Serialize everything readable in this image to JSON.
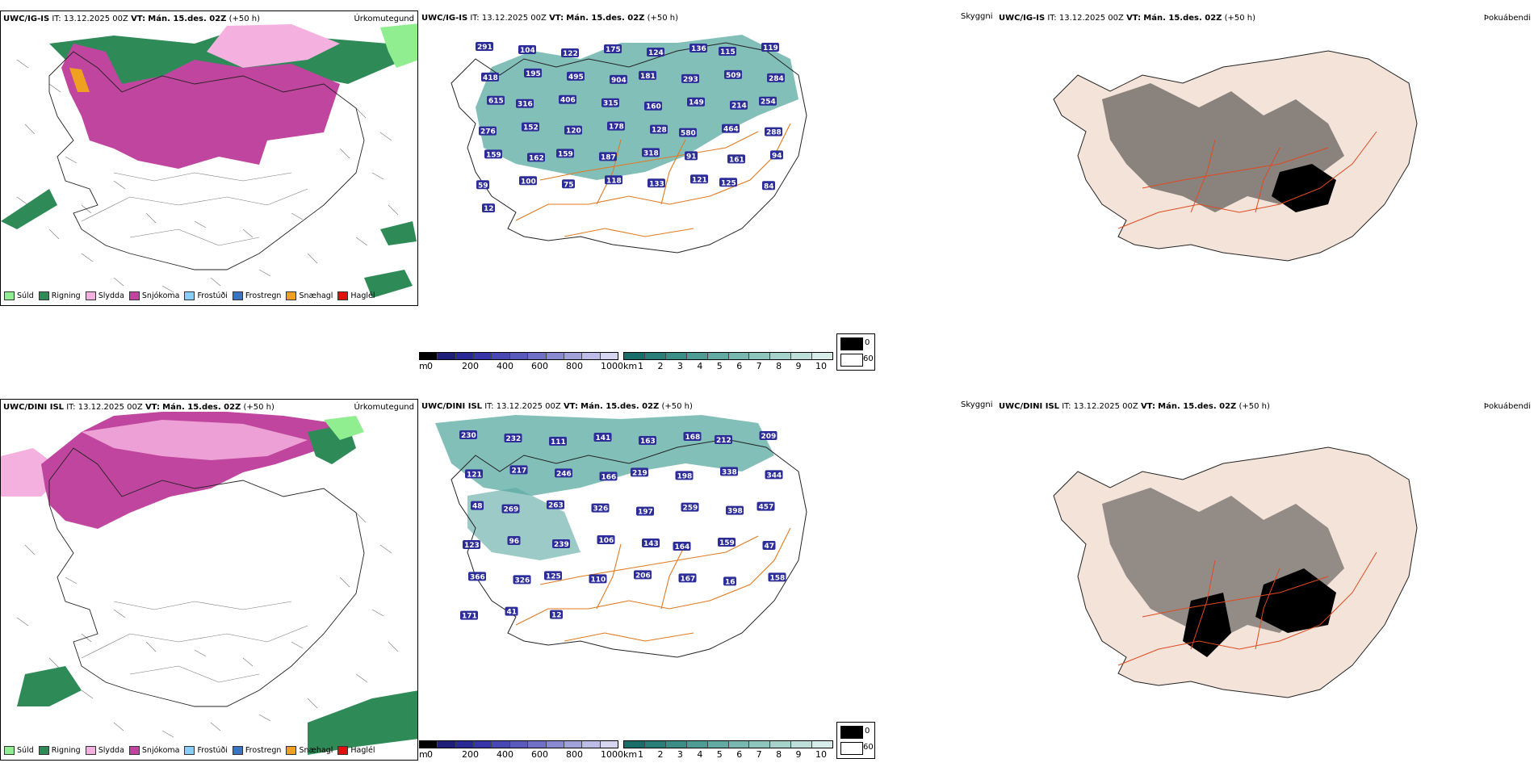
{
  "rows": [
    {
      "precip": {
        "model": "UWC/IG-IS",
        "it_label": "IT:",
        "it_value": "13.12.2025 00Z",
        "vt_label": "VT:",
        "vt_value": "Mán. 15.des. 02Z",
        "lead": "(+50 h)",
        "right_title": "Úrkomutegund"
      },
      "cloud": {
        "model": "UWC/IG-IS",
        "it_label": "IT:",
        "it_value": "13.12.2025 00Z",
        "vt_label": "VT:",
        "vt_value": "Mán. 15.des. 02Z",
        "lead": "(+50 h)",
        "labels": [
          "291",
          "104",
          "122",
          "175",
          "124",
          "136",
          "115",
          "119",
          "418",
          "195",
          "495",
          "904",
          "181",
          "293",
          "509",
          "284",
          "615",
          "316",
          "406",
          "315",
          "160",
          "149",
          "214",
          "254",
          "276",
          "152",
          "120",
          "178",
          "128",
          "580",
          "464",
          "288",
          "159",
          "162",
          "159",
          "187",
          "318",
          "91",
          "161",
          "94",
          "59",
          "100",
          "75",
          "118",
          "133",
          "121",
          "125",
          "84",
          "12"
        ]
      },
      "fog": {
        "model": "UWC/IG-IS",
        "it_label": "IT:",
        "it_value": "13.12.2025 00Z",
        "vt_label": "VT:",
        "vt_value": "Mán. 15.des. 02Z",
        "lead": "(+50 h)",
        "right_title": "Þokuábendi",
        "top_left": "Skyggni"
      }
    },
    {
      "precip": {
        "model": "UWC/DINI ISL",
        "it_label": "IT:",
        "it_value": "13.12.2025 00Z",
        "vt_label": "VT:",
        "vt_value": "Mán. 15.des. 02Z",
        "lead": "(+50 h)",
        "right_title": "Úrkomutegund"
      },
      "cloud": {
        "model": "UWC/DINI ISL",
        "it_label": "IT:",
        "it_value": "13.12.2025 00Z",
        "vt_label": "VT:",
        "vt_value": "Mán. 15.des. 02Z",
        "lead": "(+50 h)",
        "labels": [
          "230",
          "232",
          "111",
          "141",
          "163",
          "168",
          "212",
          "209",
          "121",
          "217",
          "246",
          "166",
          "219",
          "198",
          "338",
          "344",
          "48",
          "269",
          "263",
          "326",
          "197",
          "259",
          "398",
          "457",
          "123",
          "96",
          "239",
          "106",
          "143",
          "164",
          "159",
          "47",
          "366",
          "326",
          "125",
          "110",
          "206",
          "167",
          "16",
          "158",
          "171",
          "41",
          "12"
        ]
      },
      "fog": {
        "model": "UWC/DINI ISL",
        "it_label": "IT:",
        "it_value": "13.12.2025 00Z",
        "vt_label": "VT:",
        "vt_value": "Mán. 15.des. 02Z",
        "lead": "(+50 h)",
        "right_title": "Þokuábendi",
        "top_left": "Skyggni"
      }
    }
  ],
  "precip_legend": [
    {
      "label": "Súld",
      "color": "#90ee90"
    },
    {
      "label": "Rigning",
      "color": "#2e8b57"
    },
    {
      "label": "Slydda",
      "color": "#f4b0de"
    },
    {
      "label": "Snjókoma",
      "color": "#c0459e"
    },
    {
      "label": "Frostúði",
      "color": "#87cefa"
    },
    {
      "label": "Frostregn",
      "color": "#3a75c4"
    },
    {
      "label": "Snæhagl",
      "color": "#f0a020"
    },
    {
      "label": "Haglél",
      "color": "#e01010"
    }
  ],
  "cloud_base_bar": {
    "unit": "m",
    "ticks": [
      "0",
      "200",
      "400",
      "600",
      "800",
      "1000"
    ],
    "colors": [
      "#000000",
      "#1f1f7a",
      "#2a2a96",
      "#3636a8",
      "#4848b4",
      "#5a5abc",
      "#7070c6",
      "#8a8ad0",
      "#a2a2da",
      "#bcbce6",
      "#d6d6f0"
    ]
  },
  "visibility_bar": {
    "unit": "km",
    "ticks": [
      "1",
      "2",
      "3",
      "4",
      "5",
      "6",
      "7",
      "8",
      "9",
      "10"
    ],
    "colors": [
      "#1a6e6a",
      "#2a7e78",
      "#3a8e86",
      "#4e9c94",
      "#62aaa2",
      "#78b8b0",
      "#8ec6be",
      "#a6d2cc",
      "#bededa",
      "#d8ecea"
    ]
  },
  "fog_legend": {
    "black_label": "0",
    "white_label": "60"
  }
}
